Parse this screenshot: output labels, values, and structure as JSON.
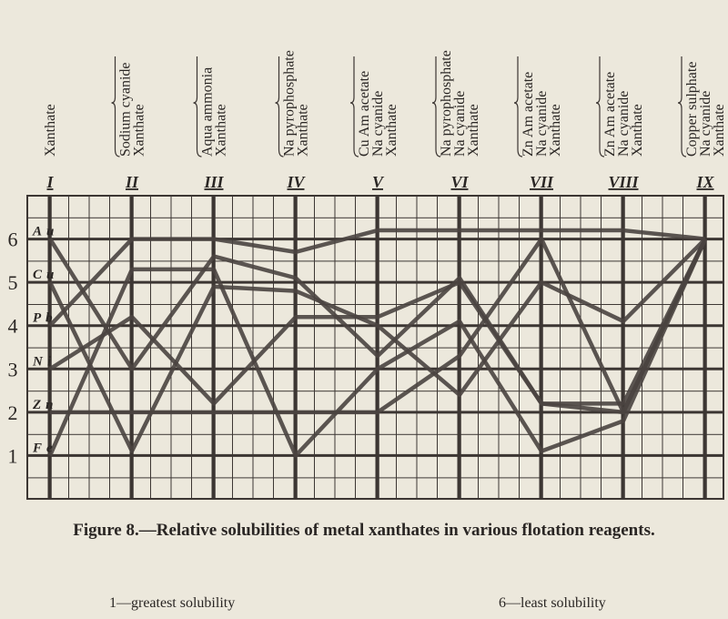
{
  "chart_data": {
    "type": "line",
    "title": "Figure 8.—Relative solubilities of metal xanthates in various flotation reagents.",
    "categories": [
      "I",
      "II",
      "III",
      "IV",
      "V",
      "VI",
      "VII",
      "VIII",
      "IX"
    ],
    "reagents": [
      [
        "Xanthate"
      ],
      [
        "Sodium cyanide",
        "Xanthate"
      ],
      [
        "Aqua ammonia",
        "Xanthate"
      ],
      [
        "Na pyrophosphate",
        "Xanthate"
      ],
      [
        "Cu Am acetate",
        "Na cyanide",
        "Xanthate"
      ],
      [
        "Na pyrophosphate",
        "Na cyanide",
        "Xanthate"
      ],
      [
        "Zn Am acetate",
        "Na cyanide",
        "Xanthate"
      ],
      [
        "Zn Am acetate",
        "Na cyanide",
        "Xanthate"
      ],
      [
        "Copper sulphate",
        "Na cyanide",
        "Xanthate"
      ]
    ],
    "series": [
      {
        "name": "Au",
        "color": "#4a4440",
        "values": [
          6,
          3,
          5.6,
          5.1,
          3.3,
          5.1,
          2.2,
          2,
          6
        ]
      },
      {
        "name": "Cu",
        "color": "#4a4440",
        "values": [
          5,
          1.1,
          4.9,
          4.8,
          4,
          2.4,
          5,
          4.1,
          6
        ]
      },
      {
        "name": "Pb",
        "color": "#4a4440",
        "values": [
          4,
          6,
          6,
          5.7,
          6.2,
          6.2,
          6.2,
          6.2,
          6
        ]
      },
      {
        "name": "Ni",
        "color": "#4a4440",
        "values": [
          3,
          4.2,
          2.2,
          4.2,
          4.2,
          5,
          2.2,
          2.2,
          6
        ]
      },
      {
        "name": "Zn",
        "color": "#4a4440",
        "values": [
          2,
          2,
          2,
          2,
          2,
          3.3,
          6,
          2,
          6
        ]
      },
      {
        "name": "Fe",
        "color": "#4a4440",
        "values": [
          1,
          5.3,
          5.3,
          1,
          3,
          4.1,
          1.1,
          1.8,
          6
        ]
      }
    ],
    "ylim": [
      0,
      7
    ],
    "yticks": [
      1,
      2,
      3,
      4,
      5,
      6
    ],
    "grid": true,
    "notes": [
      "1—greatest solubility",
      "6—least solubility"
    ]
  }
}
